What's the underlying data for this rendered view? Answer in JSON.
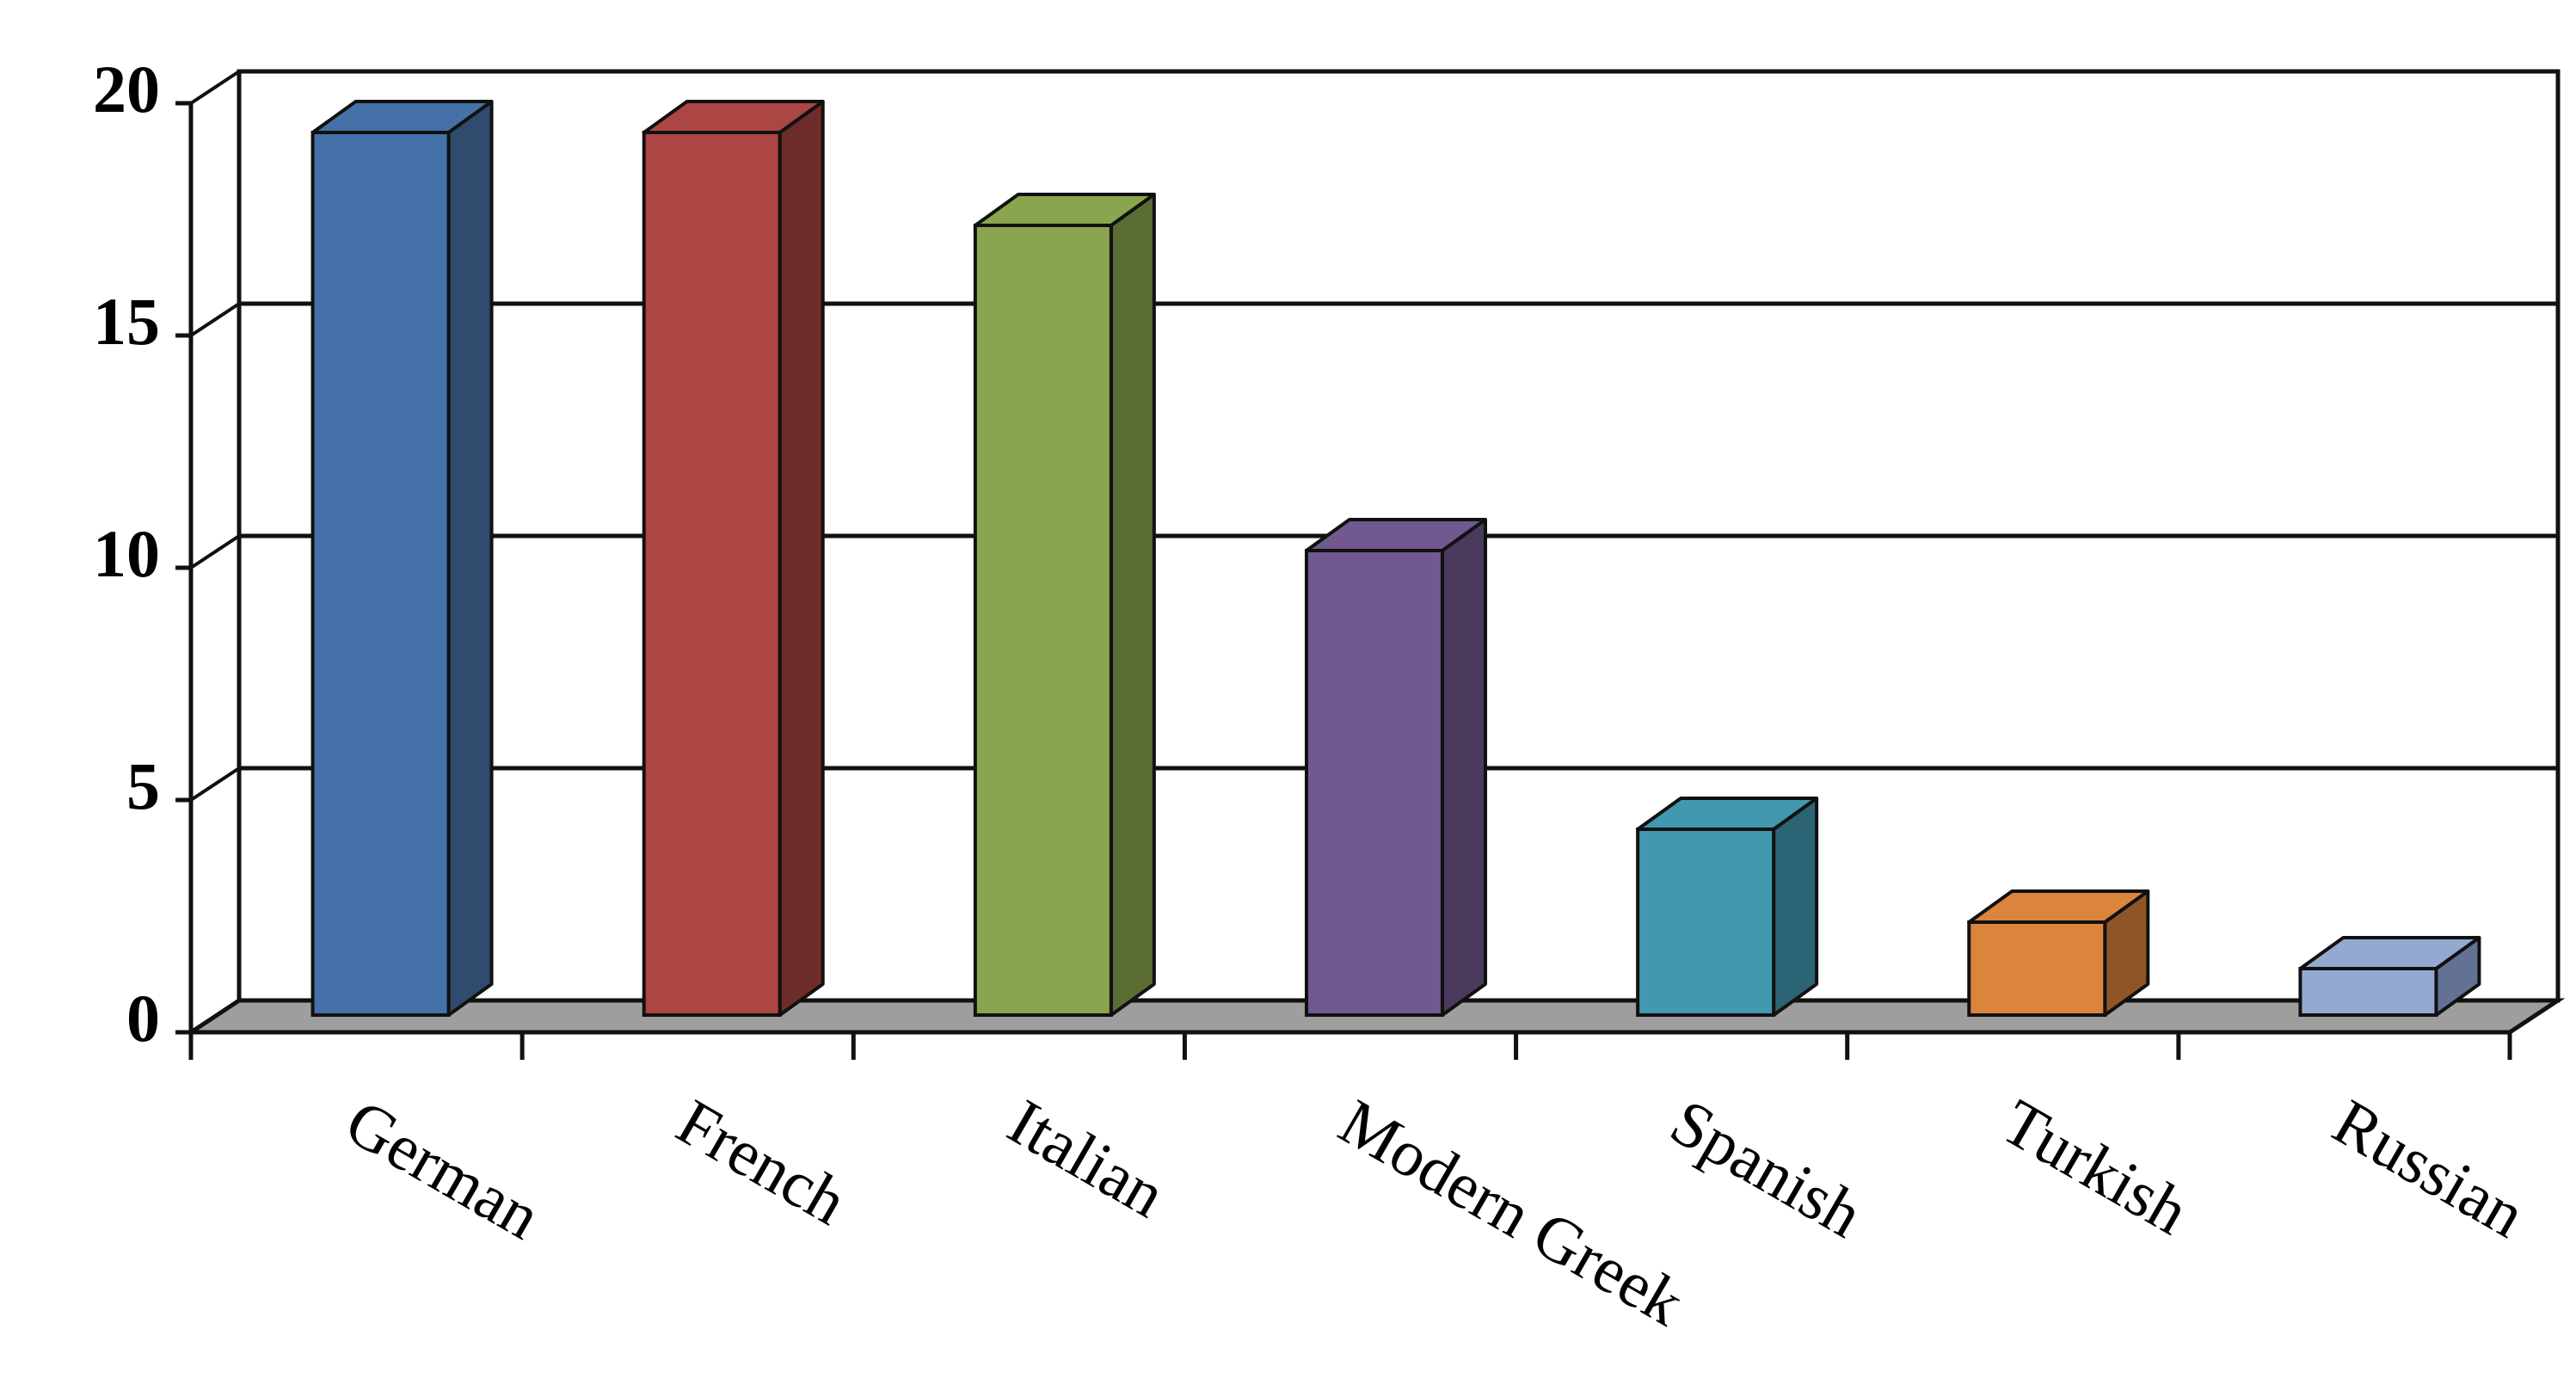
{
  "chart_data": {
    "type": "bar",
    "title": "",
    "xlabel": "",
    "ylabel": "",
    "categories": [
      "German",
      "French",
      "Italian",
      "Modern Greek",
      "Spanish",
      "Turkish",
      "Russian"
    ],
    "values": [
      19,
      19,
      17,
      10,
      4,
      2,
      1
    ],
    "ylim": [
      0,
      20
    ],
    "yticks": [
      "0",
      "5",
      "10",
      "15",
      "20"
    ],
    "grid": true,
    "legend": "none",
    "style": "3d-column",
    "colors": [
      "#4472a8",
      "#ab4644",
      "#89a54e",
      "#71588f",
      "#4198af",
      "#db843d",
      "#93a9cf"
    ],
    "side_colors": [
      "#2f4b6e",
      "#6e2c2b",
      "#5b6d33",
      "#4a3a5e",
      "#2b6474",
      "#8f5527",
      "#637294"
    ],
    "floor_color": "#9e9e9e"
  }
}
